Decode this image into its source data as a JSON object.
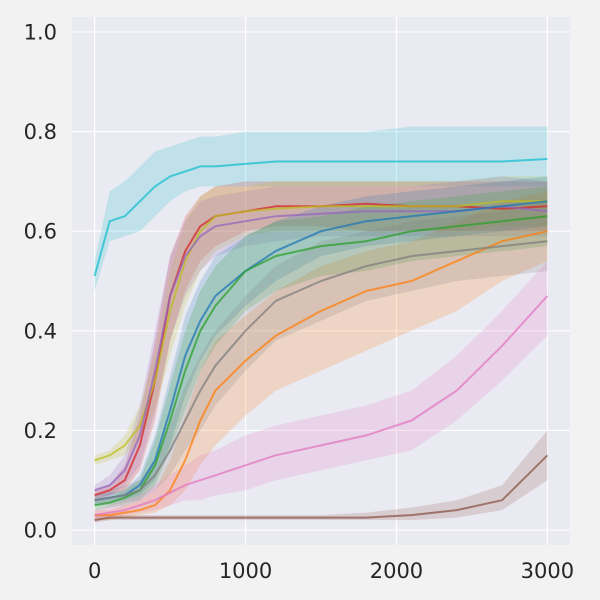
{
  "chart_data": {
    "type": "line",
    "title": "",
    "xlabel": "",
    "ylabel": "",
    "xlim": [
      -150,
      3150
    ],
    "ylim": [
      -0.03,
      1.03
    ],
    "grid": true,
    "legend": "none",
    "x_ticks": [
      0,
      1000,
      2000,
      3000
    ],
    "x_tick_labels": [
      "0",
      "1000",
      "2000",
      "3000"
    ],
    "y_ticks": [
      0.0,
      0.2,
      0.4,
      0.6,
      0.8,
      1.0
    ],
    "y_tick_labels": [
      "0.0",
      "0.2",
      "0.4",
      "0.6",
      "0.8",
      "1.0"
    ],
    "x": [
      0,
      100,
      200,
      300,
      400,
      500,
      600,
      700,
      800,
      1000,
      1200,
      1500,
      1800,
      2100,
      2400,
      2700,
      3000
    ],
    "series": [
      {
        "color": "#17becf",
        "values": [
          0.51,
          0.62,
          0.63,
          0.66,
          0.69,
          0.71,
          0.72,
          0.73,
          0.73,
          0.735,
          0.74,
          0.74,
          0.74,
          0.74,
          0.74,
          0.74,
          0.745
        ],
        "lower": [
          0.48,
          0.58,
          0.59,
          0.6,
          0.63,
          0.66,
          0.68,
          0.69,
          0.69,
          0.69,
          0.69,
          0.69,
          0.69,
          0.69,
          0.69,
          0.69,
          0.69
        ],
        "upper": [
          0.54,
          0.68,
          0.7,
          0.73,
          0.76,
          0.77,
          0.78,
          0.79,
          0.79,
          0.8,
          0.8,
          0.8,
          0.8,
          0.81,
          0.81,
          0.81,
          0.81
        ]
      },
      {
        "color": "#d62728",
        "values": [
          0.07,
          0.08,
          0.1,
          0.17,
          0.3,
          0.47,
          0.56,
          0.61,
          0.63,
          0.64,
          0.65,
          0.65,
          0.655,
          0.65,
          0.65,
          0.645,
          0.65
        ],
        "lower": [
          0.06,
          0.07,
          0.08,
          0.12,
          0.22,
          0.38,
          0.48,
          0.54,
          0.57,
          0.6,
          0.61,
          0.61,
          0.6,
          0.6,
          0.6,
          0.6,
          0.6
        ],
        "upper": [
          0.08,
          0.09,
          0.13,
          0.23,
          0.38,
          0.55,
          0.63,
          0.67,
          0.69,
          0.7,
          0.7,
          0.7,
          0.7,
          0.7,
          0.7,
          0.7,
          0.7
        ]
      },
      {
        "color": "#bcbd22",
        "values": [
          0.14,
          0.15,
          0.17,
          0.21,
          0.3,
          0.44,
          0.54,
          0.6,
          0.63,
          0.64,
          0.645,
          0.65,
          0.65,
          0.65,
          0.65,
          0.66,
          0.66
        ],
        "lower": [
          0.13,
          0.14,
          0.15,
          0.18,
          0.24,
          0.35,
          0.45,
          0.52,
          0.56,
          0.59,
          0.6,
          0.6,
          0.6,
          0.6,
          0.6,
          0.61,
          0.61
        ],
        "upper": [
          0.15,
          0.16,
          0.19,
          0.25,
          0.36,
          0.52,
          0.62,
          0.67,
          0.69,
          0.69,
          0.7,
          0.7,
          0.7,
          0.7,
          0.7,
          0.71,
          0.71
        ]
      },
      {
        "color": "#9467bd",
        "values": [
          0.08,
          0.09,
          0.12,
          0.19,
          0.32,
          0.47,
          0.55,
          0.59,
          0.61,
          0.62,
          0.63,
          0.635,
          0.64,
          0.64,
          0.64,
          0.65,
          0.64
        ],
        "lower": [
          0.07,
          0.07,
          0.09,
          0.13,
          0.24,
          0.38,
          0.47,
          0.52,
          0.55,
          0.57,
          0.58,
          0.59,
          0.59,
          0.59,
          0.59,
          0.59,
          0.59
        ],
        "upper": [
          0.09,
          0.11,
          0.15,
          0.25,
          0.4,
          0.55,
          0.62,
          0.66,
          0.67,
          0.68,
          0.69,
          0.69,
          0.69,
          0.69,
          0.7,
          0.71,
          0.7
        ]
      },
      {
        "color": "#ff7f0e",
        "values": [
          0.03,
          0.03,
          0.035,
          0.04,
          0.05,
          0.08,
          0.14,
          0.22,
          0.28,
          0.34,
          0.39,
          0.44,
          0.48,
          0.5,
          0.54,
          0.58,
          0.6
        ],
        "lower": [
          0.02,
          0.02,
          0.025,
          0.03,
          0.035,
          0.05,
          0.08,
          0.13,
          0.17,
          0.23,
          0.28,
          0.32,
          0.36,
          0.4,
          0.44,
          0.5,
          0.54
        ],
        "upper": [
          0.04,
          0.04,
          0.05,
          0.06,
          0.08,
          0.14,
          0.23,
          0.32,
          0.38,
          0.43,
          0.48,
          0.53,
          0.56,
          0.58,
          0.62,
          0.66,
          0.68
        ]
      },
      {
        "color": "#1f77b4",
        "values": [
          0.06,
          0.065,
          0.07,
          0.09,
          0.14,
          0.24,
          0.35,
          0.42,
          0.47,
          0.52,
          0.56,
          0.6,
          0.62,
          0.63,
          0.64,
          0.65,
          0.66
        ],
        "lower": [
          0.05,
          0.055,
          0.06,
          0.07,
          0.1,
          0.17,
          0.27,
          0.34,
          0.39,
          0.45,
          0.5,
          0.55,
          0.57,
          0.58,
          0.59,
          0.6,
          0.61
        ],
        "upper": [
          0.07,
          0.075,
          0.08,
          0.11,
          0.19,
          0.31,
          0.43,
          0.5,
          0.55,
          0.59,
          0.62,
          0.65,
          0.67,
          0.68,
          0.69,
          0.7,
          0.71
        ]
      },
      {
        "color": "#2ca02c",
        "values": [
          0.05,
          0.055,
          0.065,
          0.08,
          0.13,
          0.22,
          0.32,
          0.4,
          0.45,
          0.52,
          0.55,
          0.57,
          0.58,
          0.6,
          0.61,
          0.62,
          0.63
        ],
        "lower": [
          0.04,
          0.045,
          0.05,
          0.06,
          0.09,
          0.16,
          0.24,
          0.32,
          0.37,
          0.44,
          0.48,
          0.51,
          0.52,
          0.54,
          0.55,
          0.56,
          0.57
        ],
        "upper": [
          0.06,
          0.065,
          0.08,
          0.1,
          0.18,
          0.29,
          0.4,
          0.48,
          0.53,
          0.59,
          0.62,
          0.63,
          0.65,
          0.66,
          0.67,
          0.68,
          0.69
        ]
      },
      {
        "color": "#7f7f7f",
        "values": [
          0.06,
          0.065,
          0.07,
          0.08,
          0.11,
          0.16,
          0.22,
          0.28,
          0.33,
          0.4,
          0.46,
          0.5,
          0.53,
          0.55,
          0.56,
          0.57,
          0.58
        ],
        "lower": [
          0.05,
          0.05,
          0.055,
          0.06,
          0.08,
          0.11,
          0.16,
          0.2,
          0.25,
          0.32,
          0.38,
          0.42,
          0.46,
          0.48,
          0.5,
          0.51,
          0.52
        ],
        "upper": [
          0.07,
          0.08,
          0.09,
          0.1,
          0.14,
          0.21,
          0.29,
          0.35,
          0.4,
          0.47,
          0.53,
          0.58,
          0.6,
          0.62,
          0.63,
          0.64,
          0.66
        ]
      },
      {
        "color": "#e377c2",
        "values": [
          0.03,
          0.035,
          0.04,
          0.05,
          0.06,
          0.075,
          0.09,
          0.1,
          0.11,
          0.13,
          0.15,
          0.17,
          0.19,
          0.22,
          0.28,
          0.37,
          0.47
        ],
        "lower": [
          0.02,
          0.025,
          0.03,
          0.035,
          0.04,
          0.05,
          0.06,
          0.06,
          0.07,
          0.08,
          0.1,
          0.12,
          0.14,
          0.16,
          0.22,
          0.3,
          0.39
        ],
        "upper": [
          0.04,
          0.05,
          0.06,
          0.07,
          0.09,
          0.11,
          0.13,
          0.15,
          0.16,
          0.19,
          0.21,
          0.23,
          0.25,
          0.28,
          0.35,
          0.44,
          0.54
        ]
      },
      {
        "color": "#8c564b",
        "values": [
          0.02,
          0.025,
          0.025,
          0.025,
          0.025,
          0.025,
          0.025,
          0.025,
          0.025,
          0.025,
          0.025,
          0.025,
          0.025,
          0.03,
          0.04,
          0.06,
          0.15
        ],
        "lower": [
          0.015,
          0.02,
          0.02,
          0.02,
          0.02,
          0.02,
          0.02,
          0.02,
          0.02,
          0.02,
          0.02,
          0.02,
          0.02,
          0.02,
          0.025,
          0.04,
          0.1
        ],
        "upper": [
          0.03,
          0.03,
          0.03,
          0.03,
          0.03,
          0.03,
          0.03,
          0.03,
          0.03,
          0.03,
          0.03,
          0.03,
          0.035,
          0.045,
          0.06,
          0.09,
          0.2
        ]
      }
    ]
  },
  "colors": {
    "page_background": "#f2f2f2",
    "plot_background": "#eaeaf2",
    "grid": "#ffffff",
    "tick_text": "#262626"
  }
}
